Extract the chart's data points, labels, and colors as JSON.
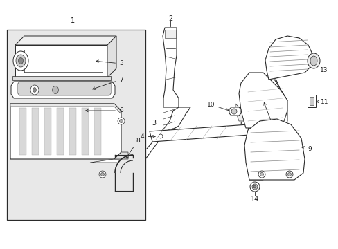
{
  "bg_color": "#ffffff",
  "box_bg": "#e8e8e8",
  "line_color": "#2a2a2a",
  "text_color": "#1a1a1a",
  "fig_width": 4.89,
  "fig_height": 3.6,
  "dpi": 100,
  "label_fs": 6.5
}
